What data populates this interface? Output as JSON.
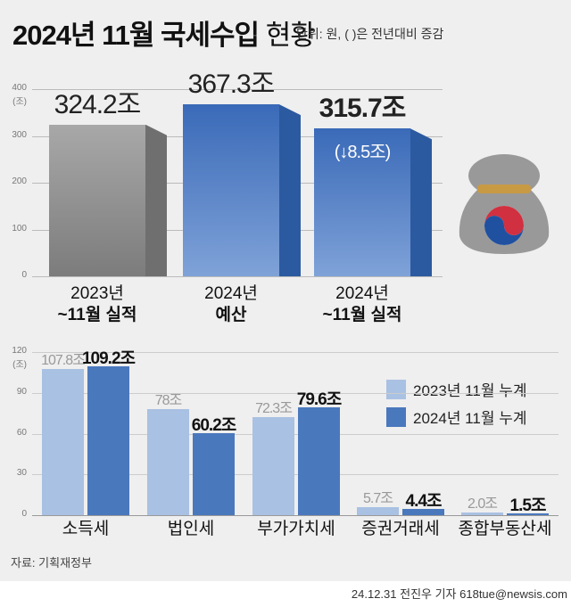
{
  "title_main": "2024년 11월 국세수입",
  "title_light": "현황",
  "unit_note": "단위: 원, ( )은 전년대비 증감",
  "source": "자료: 기획재정부",
  "credit": "24.12.31 전진우 기자 618tue@newsis.com",
  "chart_data": [
    {
      "type": "bar",
      "title": "국세수입",
      "ylabel": "(조)",
      "ylim": [
        0,
        400
      ],
      "yticks": [
        0,
        100,
        200,
        300,
        400
      ],
      "categories": [
        "2023년 ~11월 실적",
        "2024년 예산",
        "2024년 ~11월 실적"
      ],
      "category_lines": [
        [
          "2023년",
          "~11월 실적"
        ],
        [
          "2024년",
          "예산"
        ],
        [
          "2024년",
          "~11월 실적"
        ]
      ],
      "values": [
        324.2,
        367.3,
        315.7
      ],
      "value_labels": [
        "324.2조",
        "367.3조",
        "315.7조"
      ],
      "change_label": "(↓8.5조)",
      "colors": [
        "#8c8c8c",
        "#4472b8",
        "#4472b8"
      ]
    },
    {
      "type": "bar",
      "ylabel": "(조)",
      "ylim": [
        0,
        120
      ],
      "yticks": [
        0,
        30,
        60,
        90,
        120
      ],
      "categories": [
        "소득세",
        "법인세",
        "부가가치세",
        "증권거래세",
        "종합부동산세"
      ],
      "series": [
        {
          "name": "2023년 11월 누계",
          "values": [
            107.8,
            78,
            72.3,
            5.7,
            2.0
          ],
          "labels": [
            "107.8조",
            "78조",
            "72.3조",
            "5.7조",
            "2.0조"
          ],
          "color": "#a9c1e2"
        },
        {
          "name": "2024년 11월 누계",
          "values": [
            109.2,
            60.2,
            79.6,
            4.4,
            1.5
          ],
          "labels": [
            "109.2조",
            "60.2조",
            "79.6조",
            "4.4조",
            "1.5조"
          ],
          "color": "#4a78bd"
        }
      ],
      "legend": "right"
    }
  ]
}
